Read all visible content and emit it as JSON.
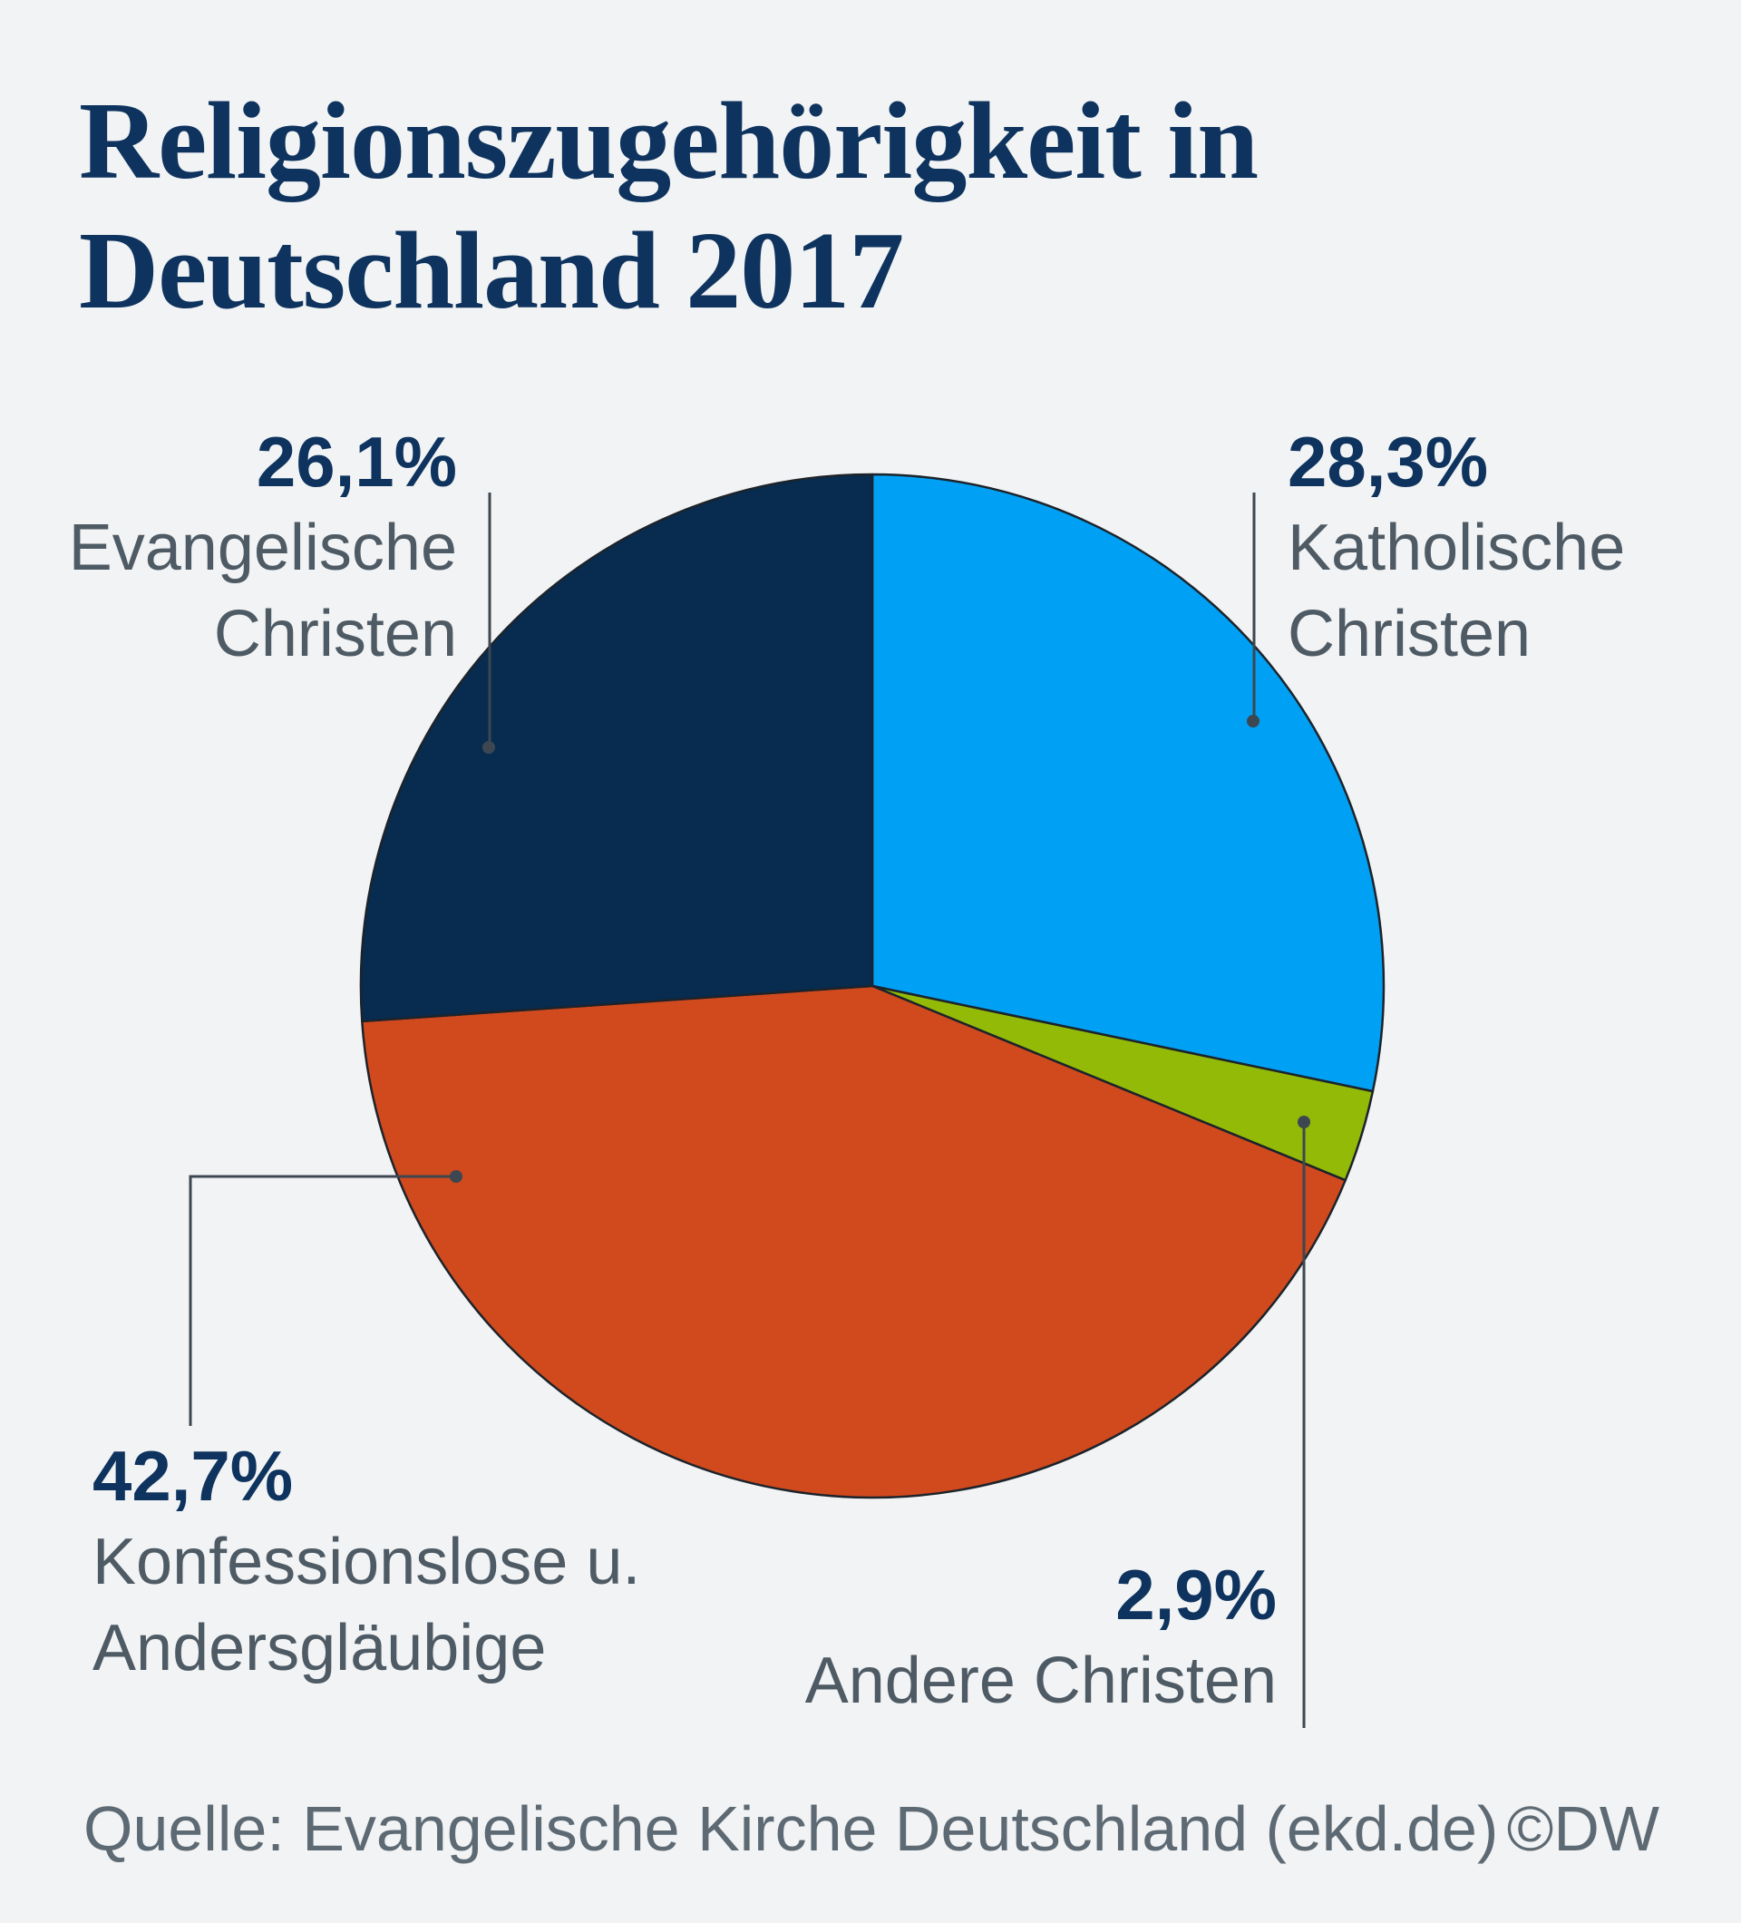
{
  "title": {
    "line1": "Religionszugehörigkeit in",
    "line2": "Deutschland 2017"
  },
  "chart_data": {
    "type": "pie",
    "title": "Religionszugehörigkeit in Deutschland 2017",
    "start_angle_deg": 0,
    "direction": "clockwise",
    "slices": [
      {
        "label": "Katholische Christen",
        "value_pct": 28.3,
        "value_label": "28,3%",
        "color": "#00a1f5"
      },
      {
        "label": "Andere Christen",
        "value_pct": 2.9,
        "value_label": "2,9%",
        "color": "#92ba07"
      },
      {
        "label": "Konfessionslose u. Andersgläubige",
        "value_pct": 42.7,
        "value_label": "42,7%",
        "color": "#d04a1e"
      },
      {
        "label": "Evangelische Christen",
        "value_pct": 26.1,
        "value_label": "26,1%",
        "color": "#072c4f"
      }
    ]
  },
  "labels": {
    "evangelisch": {
      "pct": "26,1%",
      "line1": "Evangelische",
      "line2": "Christen"
    },
    "katholisch": {
      "pct": "28,3%",
      "line1": "Katholische",
      "line2": "Christen"
    },
    "konfessionslos": {
      "pct": "42,7%",
      "line1": "Konfessionslose u.",
      "line2": "Andersgläubige"
    },
    "andere": {
      "pct": "2,9%",
      "line1": "Andere Christen"
    }
  },
  "footer": {
    "source": "Quelle: Evangelische Kirche Deutschland (ekd.de)",
    "credit": "©DW"
  },
  "colors": {
    "background": "#f1f3f4",
    "title_text": "#0e335e",
    "value_text": "#0e335e",
    "label_text": "#4e5a64",
    "footer_text": "#5d6973",
    "leader_line": "#3d4751",
    "slice_outline": "#1c232b"
  }
}
